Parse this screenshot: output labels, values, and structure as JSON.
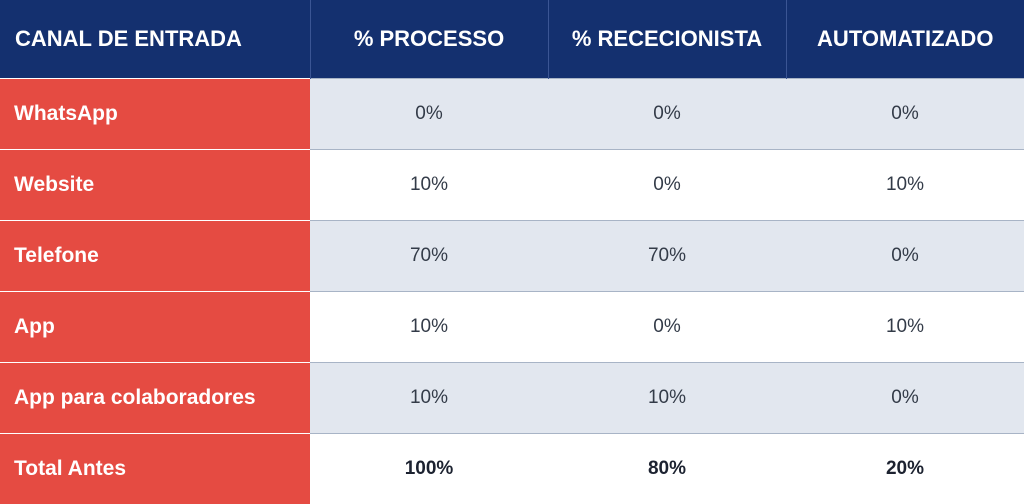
{
  "table": {
    "headers": [
      "CANAL DE ENTRADA",
      "% PROCESSO",
      "% RECECIONISTA",
      "AUTOMATIZADO"
    ],
    "rows": [
      {
        "channel": "WhatsApp",
        "processo": "0%",
        "rececionista": "0%",
        "automatizado": "0%"
      },
      {
        "channel": "Website",
        "processo": "10%",
        "rececionista": "0%",
        "automatizado": "10%"
      },
      {
        "channel": "Telefone",
        "processo": "70%",
        "rececionista": "70%",
        "automatizado": "0%"
      },
      {
        "channel": "App",
        "processo": "10%",
        "rececionista": "0%",
        "automatizado": "10%"
      },
      {
        "channel": "App para colaboradores",
        "processo": "10%",
        "rececionista": "10%",
        "automatizado": "0%"
      }
    ],
    "total": {
      "channel": "Total Antes",
      "processo": "100%",
      "rececionista": "80%",
      "automatizado": "20%"
    }
  },
  "colors": {
    "header_bg": "#14306f",
    "label_bg": "#e54b42",
    "stripe_bg": "#e2e7ef"
  }
}
